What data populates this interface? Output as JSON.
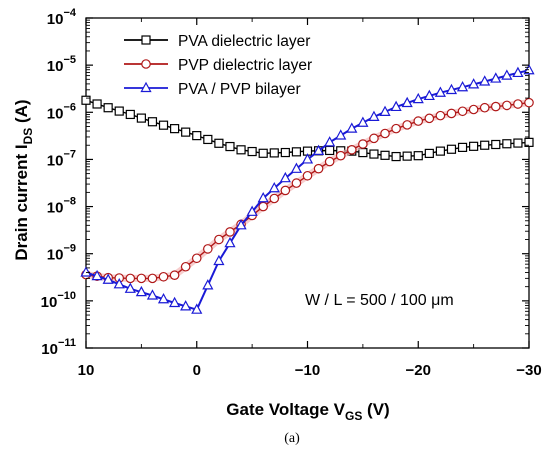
{
  "chart_data": {
    "type": "line",
    "title": "",
    "xlabel": "Gate Voltage V",
    "xlabel_sub": "GS",
    "xlabel_suffix": " (V)",
    "ylabel": "Drain current I",
    "ylabel_sub": "DS",
    "ylabel_suffix": " (A)",
    "xlim": [
      10,
      -30
    ],
    "ylim": [
      1e-11,
      0.0001
    ],
    "yscale": "log",
    "x_ticks": [
      {
        "value": 10,
        "label": "10"
      },
      {
        "value": 0,
        "label": "0"
      },
      {
        "value": -10,
        "label": "−10"
      },
      {
        "value": -20,
        "label": "−20"
      },
      {
        "value": -30,
        "label": "−30"
      }
    ],
    "y_ticks": [
      {
        "value": 0.0001,
        "base": "10",
        "exp": "−4"
      },
      {
        "value": 1e-05,
        "base": "10",
        "exp": "−5"
      },
      {
        "value": 1e-06,
        "base": "10",
        "exp": "−6"
      },
      {
        "value": 1e-07,
        "base": "10",
        "exp": "−7"
      },
      {
        "value": 1e-08,
        "base": "10",
        "exp": "−8"
      },
      {
        "value": 1e-09,
        "base": "10",
        "exp": "−9"
      },
      {
        "value": 1e-10,
        "base": "10",
        "exp": "−10"
      },
      {
        "value": 1e-11,
        "base": "10",
        "exp": "−11"
      }
    ],
    "legend_position": "top-left",
    "annotation": "W / L = 500 / 100 μm",
    "caption": "(a)",
    "series": [
      {
        "name": "PVA dielectric layer",
        "color": "#000000",
        "marker": "square",
        "x": [
          10,
          8,
          6,
          4,
          2,
          0,
          -2,
          -4,
          -6,
          -8,
          -10,
          -12,
          -14,
          -16,
          -18,
          -20,
          -22,
          -24,
          -26,
          -28,
          -30
        ],
        "y": [
          1.8e-06,
          1.25e-06,
          9e-07,
          6.3e-07,
          4.5e-07,
          3.2e-07,
          2.2e-07,
          1.6e-07,
          1.35e-07,
          1.4e-07,
          1.5e-07,
          1.55e-07,
          1.5e-07,
          1.3e-07,
          1.15e-07,
          1.2e-07,
          1.5e-07,
          1.8e-07,
          2e-07,
          2.15e-07,
          2.3e-07
        ]
      },
      {
        "name": "PVP dielectric layer",
        "color": "#b01818",
        "marker": "circle",
        "x": [
          10,
          8,
          6,
          4,
          2,
          0,
          -2,
          -4,
          -6,
          -8,
          -10,
          -12,
          -14,
          -16,
          -18,
          -20,
          -22,
          -24,
          -26,
          -28,
          -30
        ],
        "y": [
          3.6e-10,
          3.1e-10,
          3e-10,
          3e-10,
          3.5e-10,
          8e-10,
          2e-09,
          4.2e-09,
          1e-08,
          2.2e-08,
          4.5e-08,
          9e-08,
          1.6e-07,
          2.8e-07,
          4.5e-07,
          6.5e-07,
          8.5e-07,
          1.05e-06,
          1.25e-06,
          1.4e-06,
          1.6e-06
        ]
      },
      {
        "name": "PVA / PVP bilayer",
        "color": "#1a1ad6",
        "marker": "triangle",
        "x": [
          10,
          8,
          6,
          4,
          2,
          0,
          -2,
          -4,
          -6,
          -8,
          -10,
          -12,
          -14,
          -16,
          -18,
          -20,
          -22,
          -24,
          -26,
          -28,
          -30
        ],
        "y": [
          4e-10,
          2.8e-10,
          1.8e-10,
          1.3e-10,
          9e-11,
          6.5e-11,
          7e-10,
          4e-09,
          1.5e-08,
          4e-08,
          1e-07,
          2.3e-07,
          4.5e-07,
          8e-07,
          1.3e-06,
          1.9e-06,
          2.6e-06,
          3.4e-06,
          4.5e-06,
          6e-06,
          7.8e-06
        ]
      }
    ]
  }
}
